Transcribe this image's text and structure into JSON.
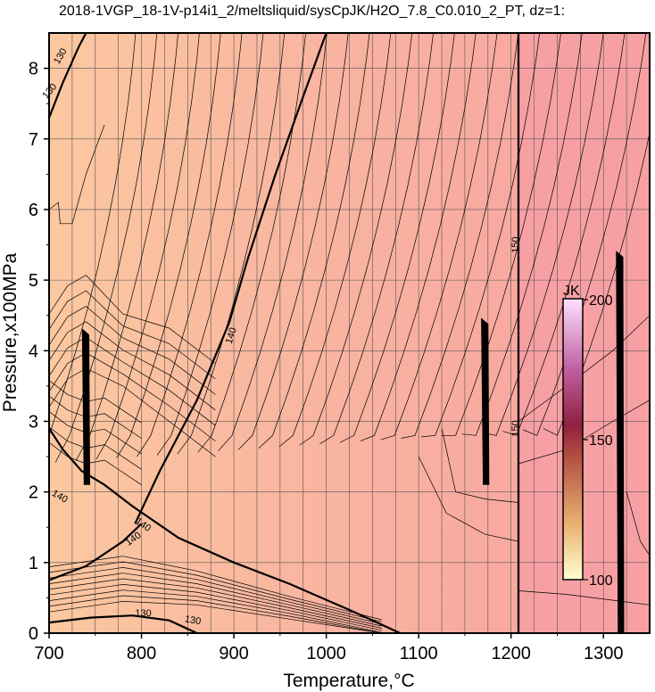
{
  "chart_data": {
    "type": "contour",
    "title": "2018-1VGP_18-1V-p14i1_2/meltsliquid/sysCpJK/H2O_7.8_C0.010_2_PT, dz=1:",
    "xlabel": "Temperature,°C",
    "ylabel": "Pressure,x100MPa",
    "xlim": [
      700,
      1350
    ],
    "ylim": [
      0,
      8.5
    ],
    "x_ticks": [
      "700",
      "800",
      "900",
      "1000",
      "1100",
      "1200",
      "1300"
    ],
    "y_ticks": [
      "0",
      "1",
      "2",
      "3",
      "4",
      "5",
      "6",
      "7",
      "8"
    ],
    "grid": true,
    "colorbar": {
      "unit": "JK",
      "ticks": [
        "100",
        "150",
        "200"
      ],
      "range": [
        100,
        200
      ]
    },
    "contour_labels": [
      "130",
      "130",
      "140",
      "140",
      "140",
      "140",
      "150",
      "150",
      "130",
      "130"
    ],
    "bold_contours": [
      {
        "level": 150,
        "points": [
          [
            1208,
            0
          ],
          [
            1208,
            8.5
          ]
        ]
      },
      {
        "level": 140,
        "points": [
          [
            793,
            1.55
          ],
          [
            820,
            2.3
          ],
          [
            860,
            3.3
          ],
          [
            895,
            4.4
          ],
          [
            915,
            5.3
          ],
          [
            945,
            6.5
          ],
          [
            975,
            7.6
          ],
          [
            1000,
            8.5
          ]
        ]
      },
      {
        "level": 140,
        "points": [
          [
            700,
            2.9
          ],
          [
            715,
            2.6
          ],
          [
            735,
            2.3
          ],
          [
            760,
            2.1
          ],
          [
            790,
            1.8
          ],
          [
            840,
            1.35
          ],
          [
            900,
            1.0
          ],
          [
            960,
            0.7
          ],
          [
            1030,
            0.3
          ],
          [
            1080,
            0
          ]
        ]
      },
      {
        "level": 140,
        "points": [
          [
            700,
            0.75
          ],
          [
            740,
            0.95
          ],
          [
            780,
            1.3
          ],
          [
            800,
            1.55
          ]
        ]
      },
      {
        "level": 130,
        "points": [
          [
            700,
            7.3
          ],
          [
            715,
            7.8
          ],
          [
            732,
            8.3
          ],
          [
            740,
            8.5
          ]
        ]
      },
      {
        "level": 130,
        "points": [
          [
            700,
            0.15
          ],
          [
            745,
            0.22
          ],
          [
            790,
            0.25
          ],
          [
            830,
            0.18
          ],
          [
            860,
            0
          ]
        ]
      }
    ],
    "anomaly_columns": [
      {
        "x": 740,
        "y_range": [
          2.1,
          4.3
        ]
      },
      {
        "x": 1172,
        "y_range": [
          2.1,
          4.45
        ]
      },
      {
        "x": 1318,
        "y_range": [
          0,
          5.4
        ]
      }
    ]
  }
}
